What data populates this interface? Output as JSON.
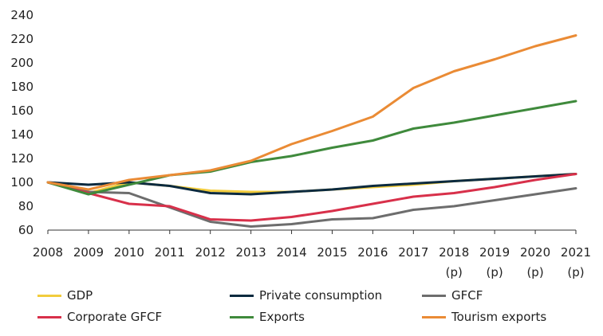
{
  "chart_data": {
    "type": "line",
    "title": "",
    "xlabel": "",
    "ylabel": "",
    "x": [
      "2008",
      "2009",
      "2010",
      "2011",
      "2012",
      "2013",
      "2014",
      "2015",
      "2016",
      "2017",
      "2018 (p)",
      "2019 (p)",
      "2020 (p)",
      "2021 (p)"
    ],
    "x_tick_labels": [
      {
        "year": "2008",
        "suffix": ""
      },
      {
        "year": "2009",
        "suffix": ""
      },
      {
        "year": "2010",
        "suffix": ""
      },
      {
        "year": "2011",
        "suffix": ""
      },
      {
        "year": "2012",
        "suffix": ""
      },
      {
        "year": "2013",
        "suffix": ""
      },
      {
        "year": "2014",
        "suffix": ""
      },
      {
        "year": "2015",
        "suffix": ""
      },
      {
        "year": "2016",
        "suffix": ""
      },
      {
        "year": "2017",
        "suffix": ""
      },
      {
        "year": "2018",
        "suffix": "(p)"
      },
      {
        "year": "2019",
        "suffix": "(p)"
      },
      {
        "year": "2020",
        "suffix": "(p)"
      },
      {
        "year": "2021",
        "suffix": "(p)"
      }
    ],
    "ylim": [
      60,
      240
    ],
    "yticks": [
      60,
      80,
      100,
      120,
      140,
      160,
      180,
      200,
      220,
      240
    ],
    "grid": false,
    "legend_position": "bottom",
    "series": [
      {
        "name": "GDP",
        "color": "#f2cc3c",
        "values": [
          100,
          91,
          100,
          97,
          93,
          92,
          92,
          94,
          96,
          98,
          101,
          103,
          105,
          107
        ]
      },
      {
        "name": "Private consumption",
        "color": "#0b2a3f",
        "values": [
          100,
          98,
          100,
          97,
          91,
          90,
          92,
          94,
          97,
          99,
          101,
          103,
          105,
          107
        ]
      },
      {
        "name": "GFCF",
        "color": "#6d6d6d",
        "values": [
          100,
          92,
          91,
          79,
          67,
          63,
          65,
          69,
          70,
          77,
          80,
          85,
          90,
          95
        ]
      },
      {
        "name": "Corporate GFCF",
        "color": "#d8304a",
        "values": [
          100,
          91,
          82,
          80,
          69,
          68,
          71,
          76,
          82,
          88,
          91,
          96,
          102,
          107
        ]
      },
      {
        "name": "Exports",
        "color": "#3f8a3c",
        "values": [
          100,
          90,
          98,
          106,
          109,
          117,
          122,
          129,
          135,
          145,
          150,
          156,
          162,
          168
        ]
      },
      {
        "name": "Tourism exports",
        "color": "#ea8b35",
        "values": [
          100,
          94,
          102,
          106,
          110,
          118,
          132,
          143,
          155,
          179,
          193,
          203,
          214,
          223
        ]
      }
    ]
  }
}
